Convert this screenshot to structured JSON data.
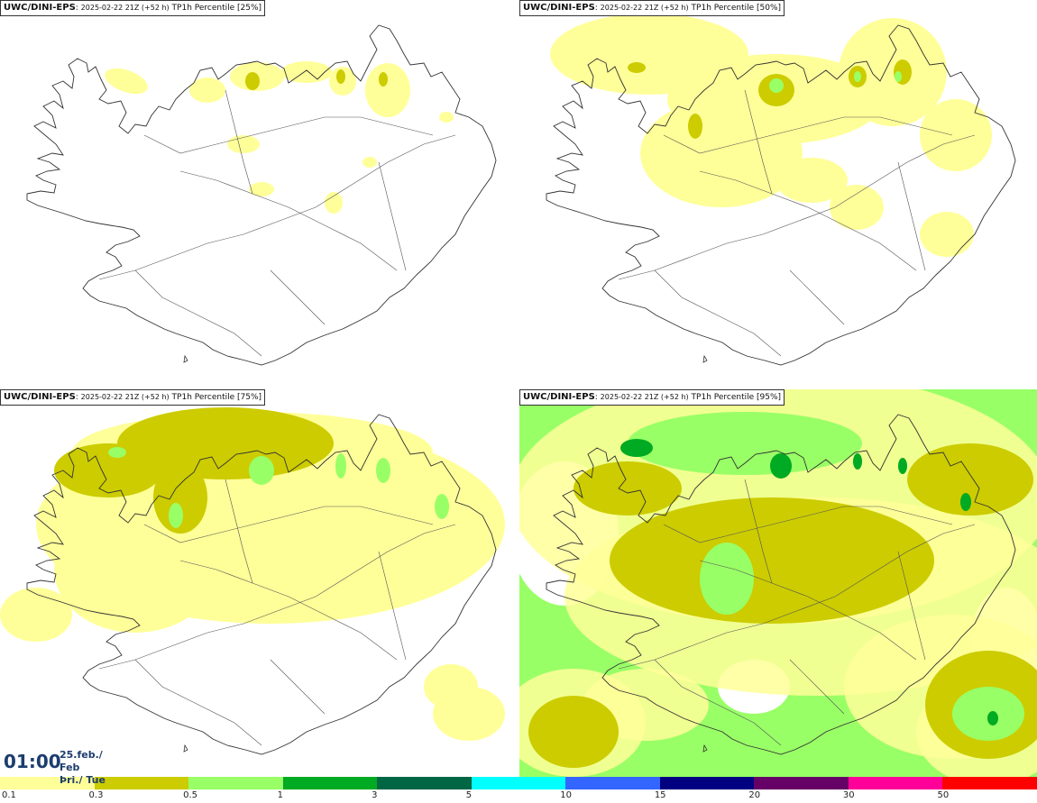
{
  "panels": [
    {
      "model": "UWC/DINI-EPS",
      "run": "2025-02-22 21Z",
      "lead": "(+52 h)",
      "param": "TP1h Percentile",
      "pct": "[25%]",
      "level": 0
    },
    {
      "model": "UWC/DINI-EPS",
      "run": "2025-02-22 21Z",
      "lead": "(+52 h)",
      "param": "TP1h Percentile",
      "pct": "[50%]",
      "level": 1
    },
    {
      "model": "UWC/DINI-EPS",
      "run": "2025-02-22 21Z",
      "lead": "(+52 h)",
      "param": "TP1h Percentile",
      "pct": "[75%]",
      "level": 2
    },
    {
      "model": "UWC/DINI-EPS",
      "run": "2025-02-22 21Z",
      "lead": "(+52 h)",
      "param": "TP1h Percentile",
      "pct": "[95%]",
      "level": 3
    }
  ],
  "time": {
    "hour": "01:00",
    "date_line1": "25.feb./ Feb",
    "date_line2": "Þri./ Tue"
  },
  "legend": {
    "colors": [
      "#ffff99",
      "#cccc00",
      "#99ff66",
      "#00aa22",
      "#006644",
      "#00ffff",
      "#3366ff",
      "#000080",
      "#660066",
      "#ff0099",
      "#ff0000"
    ],
    "labels": [
      "0.1",
      "0.3",
      "0.5",
      "1",
      "3",
      "5",
      "10",
      "15",
      "20",
      "30",
      "50"
    ]
  }
}
